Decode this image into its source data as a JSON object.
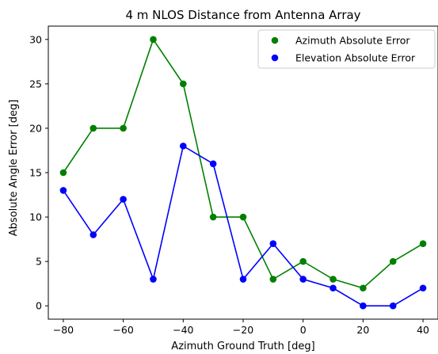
{
  "chart_data": {
    "type": "line",
    "title": "4 m NLOS Distance from Antenna Array",
    "xlabel": "Azimuth Ground Truth [deg]",
    "ylabel": "Absolute Angle Error [deg]",
    "xlim": [
      -85,
      45
    ],
    "ylim": [
      -1.5,
      31.5
    ],
    "xticks": [
      -80,
      -60,
      -40,
      -20,
      0,
      20,
      40
    ],
    "xtick_labels": [
      "−80",
      "−60",
      "−40",
      "−20",
      "0",
      "20",
      "40"
    ],
    "yticks": [
      0,
      5,
      10,
      15,
      20,
      25,
      30
    ],
    "ytick_labels": [
      "0",
      "5",
      "10",
      "15",
      "20",
      "25",
      "30"
    ],
    "legend_position": "top-right",
    "grid": false,
    "x": [
      -80,
      -70,
      -60,
      -50,
      -40,
      -30,
      -20,
      -10,
      0,
      10,
      20,
      30,
      40
    ],
    "series": [
      {
        "name": "Azimuth Absolute Error",
        "color": "#008000",
        "values": [
          15,
          20,
          20,
          30,
          25,
          10,
          10,
          3,
          5,
          3,
          2,
          5,
          7
        ]
      },
      {
        "name": "Elevation Absolute Error",
        "color": "#0000ff",
        "values": [
          13,
          8,
          12,
          3,
          18,
          16,
          3,
          7,
          3,
          2,
          0,
          0,
          2
        ]
      }
    ]
  }
}
